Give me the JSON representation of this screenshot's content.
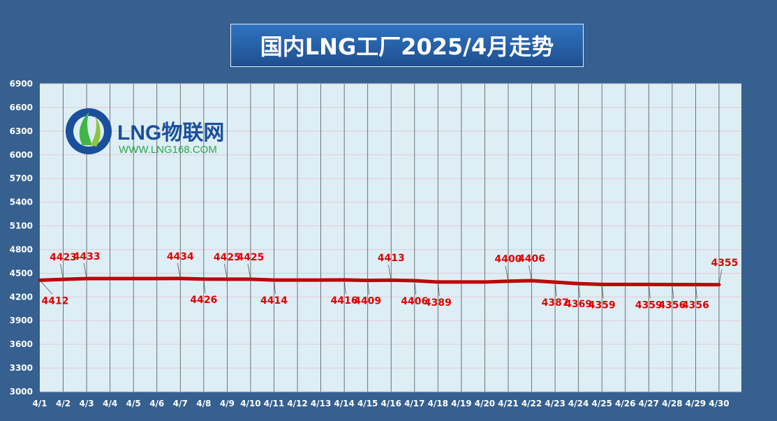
{
  "chart_data": {
    "type": "line",
    "title": "国内LNG工厂2025/4月走势",
    "categories": [
      "4/1",
      "4/2",
      "4/3",
      "4/4",
      "4/5",
      "4/6",
      "4/7",
      "4/8",
      "4/9",
      "4/10",
      "4/11",
      "4/12",
      "4/13",
      "4/14",
      "4/15",
      "4/16",
      "4/17",
      "4/18",
      "4/19",
      "4/20",
      "4/21",
      "4/22",
      "4/23",
      "4/24",
      "4/25",
      "4/26",
      "4/27",
      "4/28",
      "4/29",
      "4/30"
    ],
    "series": [
      {
        "values": [
          4412,
          4423,
          4433,
          4433,
          4433,
          4433,
          4434,
          4426,
          4425,
          4425,
          4414,
          4414,
          4414,
          4416,
          4409,
          4413,
          4406,
          4389,
          4389,
          4389,
          4400,
          4406,
          4387,
          4369,
          4359,
          4359,
          4359,
          4356,
          4356,
          4355
        ]
      }
    ],
    "labels": [
      {
        "i": 0,
        "v": "4412",
        "pos": "below"
      },
      {
        "i": 1,
        "v": "4423",
        "pos": "above"
      },
      {
        "i": 2,
        "v": "4433",
        "pos": "above"
      },
      {
        "i": 6,
        "v": "4434",
        "pos": "above"
      },
      {
        "i": 7,
        "v": "4426",
        "pos": "below"
      },
      {
        "i": 8,
        "v": "4425",
        "pos": "above"
      },
      {
        "i": 9,
        "v": "4425",
        "pos": "above"
      },
      {
        "i": 10,
        "v": "4414",
        "pos": "below"
      },
      {
        "i": 13,
        "v": "4416",
        "pos": "below"
      },
      {
        "i": 14,
        "v": "4409",
        "pos": "below"
      },
      {
        "i": 15,
        "v": "4413",
        "pos": "above"
      },
      {
        "i": 16,
        "v": "4406",
        "pos": "below"
      },
      {
        "i": 17,
        "v": "4389",
        "pos": "below"
      },
      {
        "i": 20,
        "v": "4400",
        "pos": "above"
      },
      {
        "i": 21,
        "v": "4406",
        "pos": "above"
      },
      {
        "i": 22,
        "v": "4387",
        "pos": "below"
      },
      {
        "i": 23,
        "v": "4369",
        "pos": "below"
      },
      {
        "i": 24,
        "v": "4359",
        "pos": "below"
      },
      {
        "i": 26,
        "v": "4359",
        "pos": "below"
      },
      {
        "i": 27,
        "v": "4356",
        "pos": "below"
      },
      {
        "i": 28,
        "v": "4356",
        "pos": "below"
      },
      {
        "i": 29,
        "v": "4355",
        "pos": "above"
      }
    ],
    "ylim": [
      3000,
      6900
    ],
    "yticks": [
      3000,
      3300,
      3600,
      3900,
      4200,
      4500,
      4800,
      5100,
      5400,
      5700,
      6000,
      6300,
      6600,
      6900
    ],
    "grid": true,
    "colors": {
      "line": "#c00000",
      "label": "#e00000",
      "plot_bg": "#ddeef5",
      "grid_h": "#e6c9d8",
      "grid_v": "#555555",
      "axis_text": "#ffffff"
    }
  },
  "watermark": {
    "brand": "LNG物联网",
    "url": "WWW.LNG168.COM",
    "brand_color": "#1a4f9c",
    "url_color": "#2aa84a"
  }
}
